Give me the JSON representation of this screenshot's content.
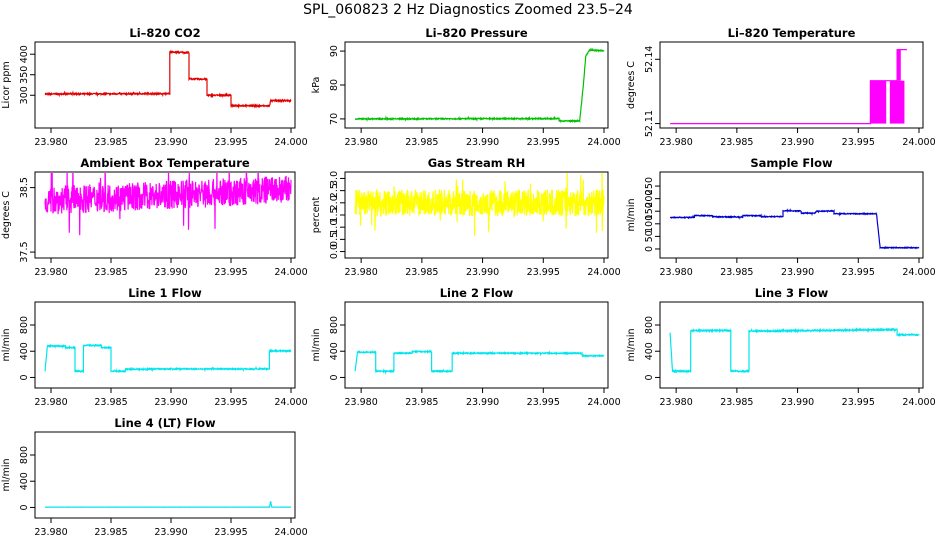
{
  "title": "SPL_060823  2 Hz Diagnostics Zoomed 23.5–24",
  "colors": {
    "red": "#e00000",
    "green": "#00c000",
    "magenta": "#ff00ff",
    "yellow": "#ffff00",
    "blue": "#0000d0",
    "cyan": "#00e5ee"
  },
  "chart_data": [
    {
      "type": "line",
      "title": "Li–820 CO2",
      "ylabel": "Licor ppm",
      "color": "red",
      "xlim": [
        23.979,
        24.0
      ],
      "ylim": [
        230,
        420
      ],
      "xticks": [
        23.98,
        23.985,
        23.99,
        23.995,
        24.0
      ],
      "xtick_labels": [
        "23.980",
        "23.985",
        "23.990",
        "23.995",
        "24.000"
      ],
      "yticks": [
        300,
        350,
        400
      ],
      "ytick_labels": [
        "300",
        "350",
        "400"
      ],
      "noise": 1.5,
      "series": [
        {
          "x": [
            23.9795,
            23.9899,
            23.9899,
            23.9915,
            23.9915,
            23.993,
            23.993,
            23.995,
            23.995,
            23.9982,
            23.9983,
            23.9985,
            24.0
          ],
          "y": [
            303,
            304,
            405,
            404,
            340,
            339,
            300,
            300,
            275,
            274,
            287,
            287,
            287
          ]
        }
      ]
    },
    {
      "type": "line",
      "title": "Li–820 Pressure",
      "ylabel": "kPa",
      "color": "green",
      "xlim": [
        23.979,
        24.0
      ],
      "ylim": [
        68.5,
        91.5
      ],
      "xticks": [
        23.98,
        23.985,
        23.99,
        23.995,
        24.0
      ],
      "xtick_labels": [
        "23.980",
        "23.985",
        "23.990",
        "23.995",
        "24.000"
      ],
      "yticks": [
        70,
        80,
        90
      ],
      "ytick_labels": [
        "70",
        "80",
        "90"
      ],
      "noise": 0.15,
      "series": [
        {
          "x": [
            23.9795,
            23.9963,
            23.9963,
            23.998,
            23.9983,
            23.9985,
            23.9988,
            24.0
          ],
          "y": [
            70.0,
            70.1,
            69.4,
            69.4,
            80.0,
            88.5,
            90.3,
            90.1
          ]
        }
      ]
    },
    {
      "type": "line",
      "title": "Li–820 Temperature",
      "ylabel": "degrees C",
      "color": "magenta",
      "xlim": [
        23.979,
        24.0
      ],
      "ylim": [
        52.1098,
        52.1462
      ],
      "xticks": [
        23.98,
        23.985,
        23.99,
        23.995,
        24.0
      ],
      "xtick_labels": [
        "23.980",
        "23.985",
        "23.990",
        "23.995",
        "24.000"
      ],
      "yticks": [
        52.11,
        52.14
      ],
      "ytick_labels": [
        "52.11",
        "52.14"
      ],
      "noise": 0,
      "series": [
        {
          "x": [
            23.9795,
            23.996,
            23.996,
            23.9982,
            23.9982,
            23.999
          ],
          "y": [
            52.11,
            52.11,
            52.13,
            52.13,
            52.1445,
            52.1445
          ]
        }
      ],
      "bands": [
        {
          "x0": 23.996,
          "x1": 23.9973,
          "y0": 52.11,
          "y1": 52.13
        },
        {
          "x0": 23.9976,
          "x1": 23.9988,
          "y0": 52.11,
          "y1": 52.13
        },
        {
          "x0": 23.9982,
          "x1": 23.9985,
          "y0": 52.13,
          "y1": 52.1445
        }
      ]
    },
    {
      "type": "line",
      "title": "Ambient Box Temperature",
      "ylabel": "degrees C",
      "color": "magenta",
      "xlim": [
        23.979,
        24.0
      ],
      "ylim": [
        37.47,
        38.68
      ],
      "xticks": [
        23.98,
        23.985,
        23.99,
        23.995,
        24.0
      ],
      "xtick_labels": [
        "23.980",
        "23.985",
        "23.990",
        "23.995",
        "24.000"
      ],
      "yticks": [
        37.5,
        38.5
      ],
      "ytick_labels": [
        "37.5",
        "38.5"
      ],
      "noise": 0.22,
      "series": [
        {
          "x": [
            23.9795,
            24.0
          ],
          "y": [
            38.3,
            38.47
          ]
        }
      ]
    },
    {
      "type": "line",
      "title": "Gas Stream RH",
      "ylabel": "percent",
      "color": "yellow",
      "xlim": [
        23.979,
        24.0
      ],
      "ylim": [
        -0.1,
        3.1
      ],
      "xticks": [
        23.98,
        23.985,
        23.99,
        23.995,
        24.0
      ],
      "xtick_labels": [
        "23.980",
        "23.985",
        "23.990",
        "23.995",
        "24.000"
      ],
      "yticks": [
        0.0,
        0.5,
        1.0,
        1.5,
        2.0,
        2.5,
        3.0
      ],
      "ytick_labels": [
        "0.0",
        "0.5",
        "1.0",
        "1.5",
        "2.0",
        "2.5",
        "3.0"
      ],
      "noise": 0.55,
      "series": [
        {
          "x": [
            23.9795,
            24.0
          ],
          "y": [
            2.0,
            2.0
          ]
        }
      ]
    },
    {
      "type": "line",
      "title": "Sample Flow",
      "ylabel": "ml/min",
      "color": "blue",
      "xlim": [
        23.979,
        24.0
      ],
      "ylim": [
        -20,
        290
      ],
      "xticks": [
        23.98,
        23.985,
        23.99,
        23.995,
        24.0
      ],
      "xtick_labels": [
        "23.980",
        "23.985",
        "23.990",
        "23.995",
        "24.000"
      ],
      "yticks": [
        0,
        50,
        100,
        150,
        200,
        250
      ],
      "ytick_labels": [
        "0",
        "50",
        "100",
        "150",
        "200",
        "250"
      ],
      "noise": 1.5,
      "series": [
        {
          "x": [
            23.9795,
            23.9815,
            23.9815,
            23.983,
            23.983,
            23.9855,
            23.9855,
            23.987,
            23.987,
            23.9888,
            23.9888,
            23.9903,
            23.9903,
            23.9915,
            23.9915,
            23.993,
            23.993,
            23.9965,
            23.9968,
            24.0
          ],
          "y": [
            125,
            126,
            133,
            132,
            128,
            127,
            133,
            132,
            128,
            129,
            152,
            151,
            142,
            143,
            150,
            151,
            140,
            140,
            5,
            5
          ]
        }
      ]
    },
    {
      "type": "line",
      "title": "Line 1 Flow",
      "ylabel": "ml/min",
      "color": "cyan",
      "xlim": [
        23.979,
        24.0
      ],
      "ylim": [
        -100,
        1090
      ],
      "xticks": [
        23.98,
        23.985,
        23.99,
        23.995,
        24.0
      ],
      "xtick_labels": [
        "23.980",
        "23.985",
        "23.990",
        "23.995",
        "24.000"
      ],
      "yticks": [
        0,
        400,
        800
      ],
      "ytick_labels": [
        "0",
        "400",
        "800"
      ],
      "noise": 8,
      "series": [
        {
          "x": [
            23.9795,
            23.9797,
            23.9812,
            23.9812,
            23.982,
            23.982,
            23.9827,
            23.9827,
            23.9842,
            23.9842,
            23.985,
            23.985,
            23.9862,
            23.9862,
            23.988,
            23.988,
            23.9982,
            23.9982,
            24.0
          ],
          "y": [
            95,
            480,
            480,
            455,
            455,
            95,
            95,
            490,
            490,
            455,
            455,
            95,
            95,
            125,
            125,
            130,
            130,
            405,
            405
          ]
        }
      ]
    },
    {
      "type": "line",
      "title": "Line 2 Flow",
      "ylabel": "ml/min",
      "color": "cyan",
      "xlim": [
        23.979,
        24.0
      ],
      "ylim": [
        -100,
        1090
      ],
      "xticks": [
        23.98,
        23.985,
        23.99,
        23.995,
        24.0
      ],
      "xtick_labels": [
        "23.980",
        "23.985",
        "23.990",
        "23.995",
        "24.000"
      ],
      "yticks": [
        0,
        400,
        800
      ],
      "ytick_labels": [
        "0",
        "400",
        "800"
      ],
      "noise": 8,
      "series": [
        {
          "x": [
            23.9795,
            23.9797,
            23.9812,
            23.9812,
            23.9827,
            23.9827,
            23.9842,
            23.9842,
            23.9858,
            23.9858,
            23.9875,
            23.9875,
            23.9982,
            23.9982,
            24.0
          ],
          "y": [
            95,
            385,
            385,
            95,
            95,
            370,
            370,
            395,
            395,
            95,
            95,
            370,
            370,
            330,
            330
          ]
        }
      ]
    },
    {
      "type": "line",
      "title": "Line 3 Flow",
      "ylabel": "ml/min",
      "color": "cyan",
      "xlim": [
        23.979,
        24.0
      ],
      "ylim": [
        -100,
        1090
      ],
      "xticks": [
        23.98,
        23.985,
        23.99,
        23.995,
        24.0
      ],
      "xtick_labels": [
        "23.980",
        "23.985",
        "23.990",
        "23.995",
        "24.000"
      ],
      "yticks": [
        0,
        400,
        800
      ],
      "ytick_labels": [
        "0",
        "400",
        "800"
      ],
      "noise": 10,
      "series": [
        {
          "x": [
            23.9795,
            23.9797,
            23.9812,
            23.9812,
            23.9813,
            23.9814,
            23.9845,
            23.9845,
            23.986,
            23.986,
            23.9982,
            23.9982,
            24.0
          ],
          "y": [
            690,
            95,
            95,
            700,
            720,
            715,
            715,
            95,
            95,
            705,
            730,
            650,
            650
          ]
        }
      ]
    },
    {
      "type": "line",
      "title": "Line 4 (LT) Flow",
      "ylabel": "ml/min",
      "color": "cyan",
      "xlim": [
        23.979,
        24.0
      ],
      "ylim": [
        -100,
        1090
      ],
      "xticks": [
        23.98,
        23.985,
        23.99,
        23.995,
        24.0
      ],
      "xtick_labels": [
        "23.980",
        "23.985",
        "23.990",
        "23.995",
        "24.000"
      ],
      "yticks": [
        0,
        400,
        800
      ],
      "ytick_labels": [
        "0",
        "400",
        "800"
      ],
      "noise": 1,
      "series": [
        {
          "x": [
            23.9795,
            23.9982,
            23.9983,
            23.9984,
            24.0
          ],
          "y": [
            5,
            5,
            95,
            5,
            5
          ]
        }
      ]
    }
  ]
}
